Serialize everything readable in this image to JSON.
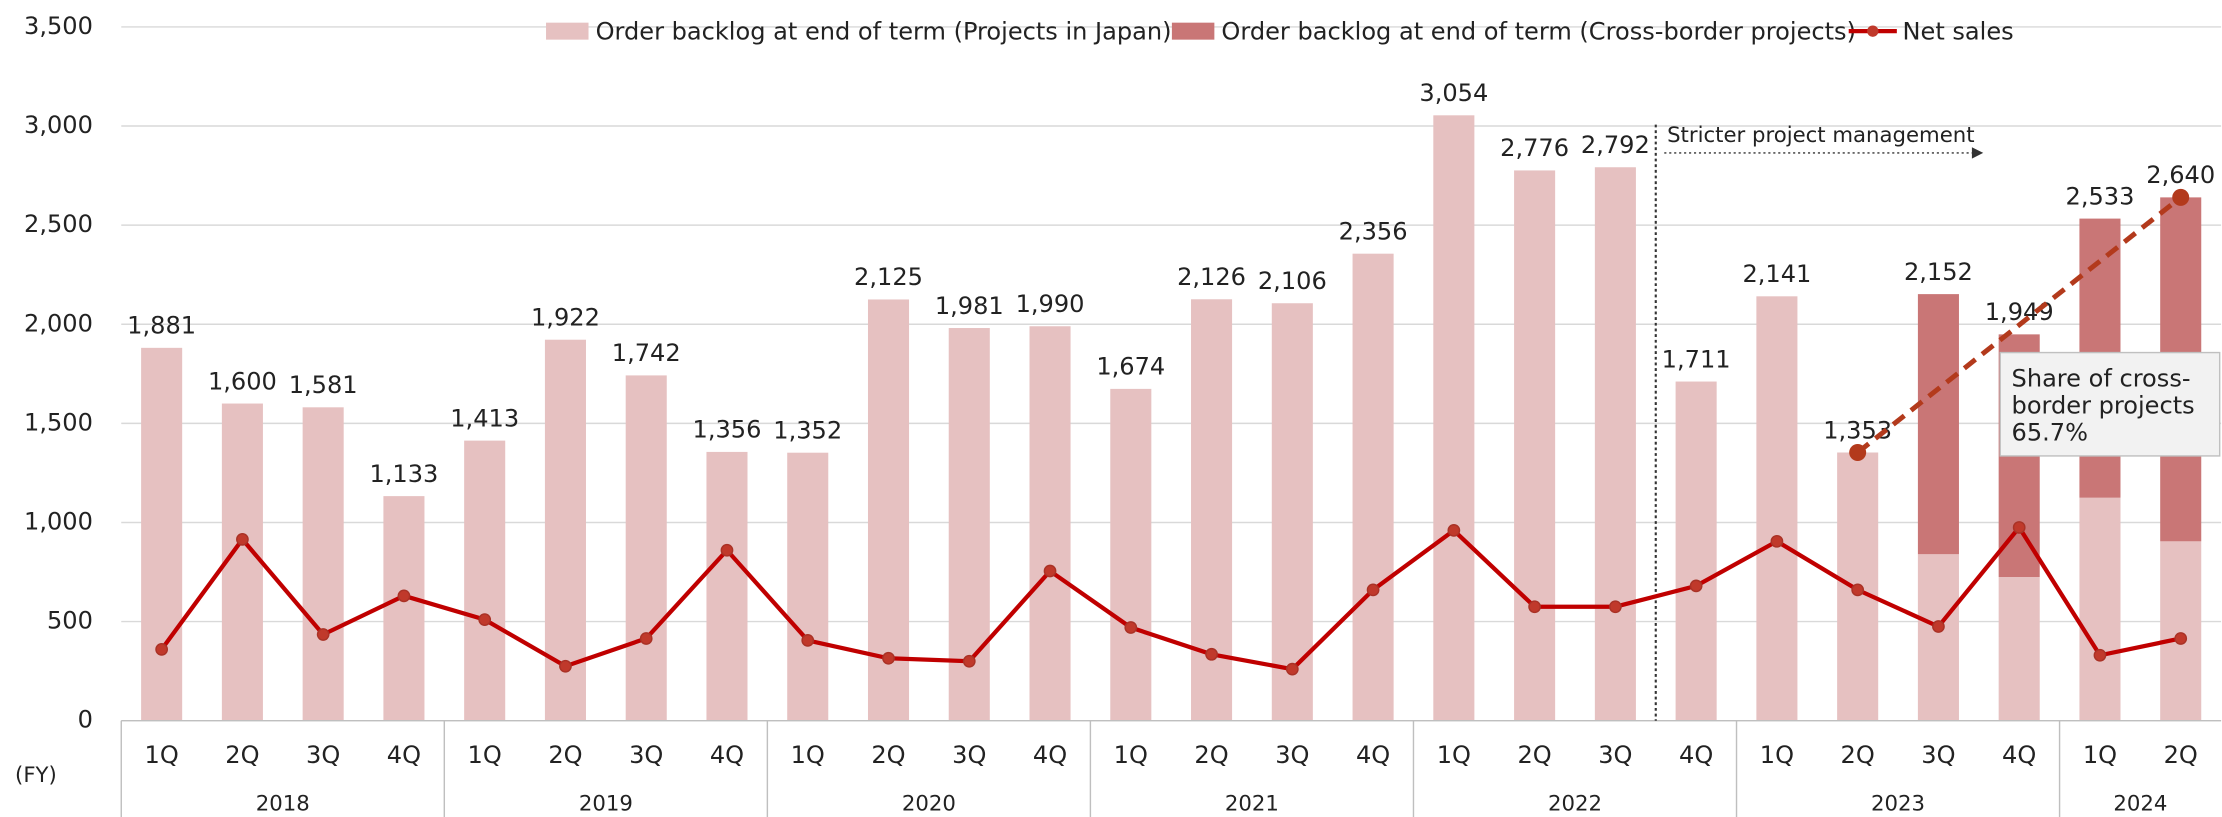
{
  "chart_data": {
    "type": "stacked-bar-line",
    "categories": [
      "1Q",
      "2Q",
      "3Q",
      "4Q",
      "1Q",
      "2Q",
      "3Q",
      "4Q",
      "1Q",
      "2Q",
      "3Q",
      "4Q",
      "1Q",
      "2Q",
      "3Q",
      "4Q",
      "1Q",
      "2Q",
      "3Q",
      "4Q",
      "1Q",
      "2Q",
      "3Q",
      "4Q",
      "1Q",
      "2Q"
    ],
    "groups": [
      "2018",
      "2019",
      "2020",
      "2021",
      "2022",
      "2023",
      "2024"
    ],
    "x_label": "(FY)",
    "series": [
      {
        "name": "Order backlog at end of term (Projects in Japan)",
        "color": "#e6c1c1",
        "kind": "bar",
        "values": [
          1881,
          1600,
          1581,
          1133,
          1413,
          1922,
          1742,
          1356,
          1352,
          2125,
          1981,
          1990,
          1674,
          2126,
          2106,
          2356,
          3054,
          2776,
          2792,
          1711,
          2141,
          1353,
          840,
          725,
          1125,
          905
        ]
      },
      {
        "name": "Order backlog at end of term (Cross-border projects)",
        "color": "#c97676",
        "kind": "bar",
        "values": [
          null,
          null,
          null,
          null,
          null,
          null,
          null,
          null,
          null,
          null,
          null,
          null,
          null,
          null,
          null,
          null,
          null,
          null,
          null,
          null,
          null,
          null,
          1312,
          1224,
          1408,
          1735
        ]
      },
      {
        "name": "Net sales",
        "color": "#c00000",
        "kind": "line",
        "values": [
          360,
          915,
          435,
          630,
          510,
          275,
          415,
          860,
          405,
          315,
          300,
          755,
          470,
          335,
          260,
          660,
          960,
          575,
          575,
          680,
          905,
          660,
          475,
          975,
          330,
          415
        ]
      }
    ],
    "totals": [
      1881,
      1600,
      1581,
      1133,
      1413,
      1922,
      1742,
      1356,
      1352,
      2125,
      1981,
      1990,
      1674,
      2126,
      2106,
      2356,
      3054,
      2776,
      2792,
      1711,
      2141,
      1353,
      2152,
      1949,
      2533,
      2640
    ],
    "total_labels": [
      "1,881",
      "1,600",
      "1,581",
      "1,133",
      "1,413",
      "1,922",
      "1,742",
      "1,356",
      "1,352",
      "2,125",
      "1,981",
      "1,990",
      "1,674",
      "2,126",
      "2,106",
      "2,356",
      "3,054",
      "2,776",
      "2,792",
      "1,711",
      "2,141",
      "1,353",
      "2,152",
      "1,949",
      "2,533",
      "2,640"
    ],
    "ylim": [
      0,
      3500
    ],
    "yticks": [
      0,
      500,
      {
        "value": 1000,
        "label": "1,000"
      },
      {
        "value": 1500,
        "label": "1,500"
      },
      {
        "value": 2000,
        "label": "2,000"
      },
      {
        "value": 2500,
        "label": "2,500"
      },
      {
        "value": 3000,
        "label": "3,000"
      },
      {
        "value": 3500,
        "label": "3,500"
      }
    ],
    "grid": true,
    "legend": "top",
    "annotations": {
      "policy": "Stricter project management",
      "share": [
        "Share of cross-",
        "border projects",
        "65.7%"
      ]
    }
  }
}
